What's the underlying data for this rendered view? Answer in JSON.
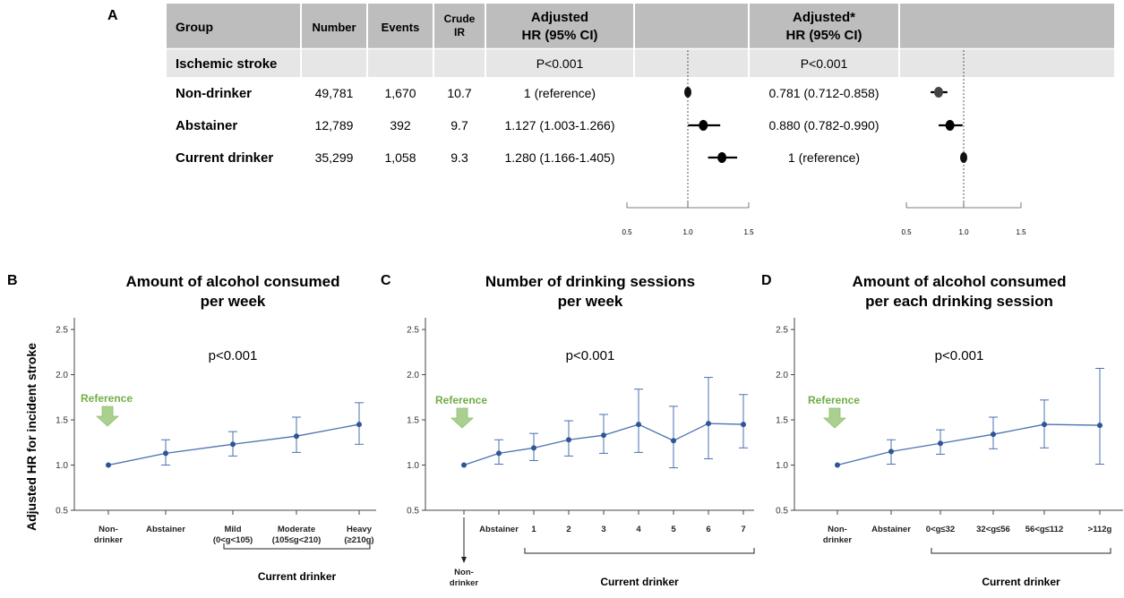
{
  "panelA": {
    "label": "A",
    "headers": {
      "group": "Group",
      "number": "Number",
      "events": "Events",
      "crude_ir": [
        "Crude",
        "IR"
      ],
      "adjusted": [
        "Adjusted",
        "HR (95% CI)"
      ],
      "adjusted_star": [
        "Adjusted*",
        "HR (95% CI)"
      ]
    },
    "section": {
      "label": "Ischemic stroke",
      "p_adjusted": "P<0.001",
      "p_adjusted_star": "P<0.001"
    },
    "rows": [
      {
        "group": "Non-drinker",
        "number": "49,781",
        "events": "1,670",
        "crude_ir": "10.7",
        "adj_text": "1 (reference)",
        "adj_star_text": "0.781 (0.712-0.858)"
      },
      {
        "group": "Abstainer",
        "number": "12,789",
        "events": "392",
        "crude_ir": "9.7",
        "adj_text": "1.127 (1.003-1.266)",
        "adj_star_text": "0.880 (0.782-0.990)"
      },
      {
        "group": "Current drinker",
        "number": "35,299",
        "events": "1,058",
        "crude_ir": "9.3",
        "adj_text": "1.280 (1.166-1.405)",
        "adj_star_text": "1 (reference)"
      }
    ],
    "forest_ticks": [
      "0.5",
      "1.0",
      "1.5"
    ],
    "colors": {
      "header_bg": "#bdbdbd",
      "section_bg": "#e3e3e3",
      "marker": "#000000"
    }
  },
  "chart_data": [
    {
      "type": "forest",
      "panel": "A",
      "series": [
        {
          "name": "Adjusted",
          "values": [
            {
              "hr": 1.0,
              "lo": 1.0,
              "hi": 1.0
            },
            {
              "hr": 1.127,
              "lo": 1.003,
              "hi": 1.266
            },
            {
              "hr": 1.28,
              "lo": 1.166,
              "hi": 1.405
            }
          ]
        },
        {
          "name": "Adjusted*",
          "values": [
            {
              "hr": 0.781,
              "lo": 0.712,
              "hi": 0.858
            },
            {
              "hr": 0.88,
              "lo": 0.782,
              "hi": 0.99
            },
            {
              "hr": 1.0,
              "lo": 1.0,
              "hi": 1.0
            }
          ]
        }
      ],
      "xlim": [
        0.5,
        1.5
      ],
      "reference_line": 1.0
    },
    {
      "type": "line",
      "panel": "B",
      "title": [
        "Amount of alcohol consumed",
        "per week"
      ],
      "ylabel": "Adjusted HR for incident stroke",
      "pvalue": "p<0.001",
      "categories": [
        [
          "Non-",
          "drinker"
        ],
        [
          "Abstainer"
        ],
        [
          "Mild",
          "(0<g<105)"
        ],
        [
          "Moderate",
          "(105≤g<210)"
        ],
        [
          "Heavy",
          "(≥210g)"
        ]
      ],
      "values": [
        1.0,
        1.13,
        1.23,
        1.32,
        1.45
      ],
      "lower": [
        1.0,
        1.0,
        1.1,
        1.14,
        1.23
      ],
      "upper": [
        1.0,
        1.28,
        1.37,
        1.53,
        1.69
      ],
      "yticks": [
        "0.5",
        "1.0",
        "1.5",
        "2.0",
        "2.5"
      ],
      "ylim": [
        0.5,
        2.55
      ],
      "reference_label": "Reference",
      "group_label": "Current drinker",
      "group_from": 2,
      "group_to": 4,
      "nondrinker_below_axis": false
    },
    {
      "type": "line",
      "panel": "C",
      "title": [
        "Number of drinking sessions",
        "per week"
      ],
      "pvalue": "p<0.001",
      "categories": [
        [
          ""
        ],
        [
          "Abstainer"
        ],
        [
          "1"
        ],
        [
          "2"
        ],
        [
          "3"
        ],
        [
          "4"
        ],
        [
          "5"
        ],
        [
          "6"
        ],
        [
          "7"
        ]
      ],
      "nondrinker_label": [
        "Non-",
        "drinker"
      ],
      "values": [
        1.0,
        1.13,
        1.19,
        1.28,
        1.33,
        1.45,
        1.27,
        1.46,
        1.45
      ],
      "lower": [
        1.0,
        1.01,
        1.05,
        1.1,
        1.13,
        1.14,
        0.97,
        1.07,
        1.19
      ],
      "upper": [
        1.0,
        1.28,
        1.35,
        1.49,
        1.56,
        1.84,
        1.65,
        1.97,
        1.78
      ],
      "yticks": [
        "0.5",
        "1.0",
        "1.5",
        "2.0",
        "2.5"
      ],
      "ylim": [
        0.5,
        2.55
      ],
      "reference_label": "Reference",
      "group_label": "Current drinker",
      "group_from": 2,
      "group_to": 8,
      "nondrinker_below_axis": true
    },
    {
      "type": "line",
      "panel": "D",
      "title": [
        "Amount of alcohol consumed",
        "per each drinking session"
      ],
      "pvalue": "p<0.001",
      "categories": [
        [
          "Non-",
          "drinker"
        ],
        [
          "Abstainer"
        ],
        [
          "0<g≤32"
        ],
        [
          "32<g≤56"
        ],
        [
          "56<g≤112"
        ],
        [
          ">112g"
        ]
      ],
      "values": [
        1.0,
        1.15,
        1.24,
        1.34,
        1.45,
        1.44
      ],
      "lower": [
        1.0,
        1.01,
        1.12,
        1.18,
        1.19,
        1.01
      ],
      "upper": [
        1.0,
        1.28,
        1.39,
        1.53,
        1.72,
        2.07
      ],
      "yticks": [
        "0.5",
        "1.0",
        "1.5",
        "2.0",
        "2.5"
      ],
      "ylim": [
        0.5,
        2.55
      ],
      "reference_label": "Reference",
      "group_label": "Current drinker",
      "group_from": 2,
      "group_to": 5,
      "nondrinker_below_axis": false
    }
  ],
  "panel_labels": {
    "B": "B",
    "C": "C",
    "D": "D"
  },
  "colors": {
    "line": "#4a72b0",
    "point": "#2f5597",
    "reference_arrow": "#a9d08e",
    "reference_text": "#70ad47",
    "axis": "#444444"
  }
}
